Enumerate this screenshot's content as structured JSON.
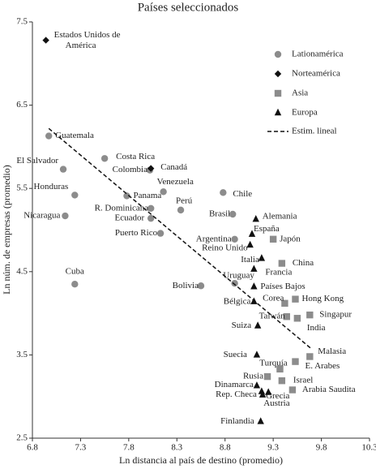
{
  "chart_data": {
    "type": "scatter",
    "title": "Países seleccionados",
    "x_label": "Ln distancia al país de destino (promedio)",
    "y_label": "Ln núm. de empresas (promedio)",
    "xlim": [
      6.8,
      10.3
    ],
    "xticks": [
      6.8,
      7.3,
      7.8,
      8.3,
      8.8,
      9.3,
      9.8,
      10.3
    ],
    "ylim": [
      2.5,
      7.5
    ],
    "yticks": [
      7.5,
      6.5,
      5.5,
      4.5,
      3.5,
      2.5
    ],
    "series": [
      {
        "name": "Lationamérica",
        "marker": "circle",
        "color": "#8c8c8c",
        "labels": [
          "Guatemala",
          "El Salvador",
          "Costa Rica",
          "Honduras",
          "Panama",
          "R. Dominicana",
          "Ecuador",
          "Nicaragua",
          "Colombia",
          "Venezuela",
          "Perú",
          "Puerto Rico",
          "Chile",
          "Brasil",
          "Argentina",
          "Uruguay",
          "Cuba",
          "Bolivia"
        ],
        "x": [
          6.97,
          7.12,
          7.55,
          7.24,
          7.78,
          8.03,
          8.03,
          7.14,
          8.02,
          8.16,
          8.34,
          8.13,
          8.78,
          8.88,
          8.9,
          8.9,
          7.24,
          8.55
        ],
        "values": [
          6.13,
          5.73,
          5.86,
          5.42,
          5.41,
          5.26,
          5.14,
          5.17,
          5.72,
          5.46,
          5.24,
          4.96,
          5.45,
          5.19,
          4.89,
          4.36,
          4.35,
          4.33
        ]
      },
      {
        "name": "Norteamérica",
        "marker": "diamond",
        "color": "#111111",
        "labels": [
          [
            "Estados Unidos de",
            "América"
          ],
          "Canadá"
        ],
        "x": [
          6.94,
          8.03
        ],
        "values": [
          7.28,
          5.74
        ]
      },
      {
        "name": "Asia",
        "marker": "square",
        "color": "#8c8c8c",
        "labels": [
          "Japón",
          "China",
          "Corea",
          "Hong Kong",
          "Taiwán",
          "Singapur",
          "India",
          "Malasia",
          "E. Arabes",
          "Turquía",
          "Rusia",
          "Israel",
          "Arabia Saudita"
        ],
        "x": [
          9.3,
          9.39,
          9.42,
          9.53,
          9.44,
          9.68,
          9.55,
          9.68,
          9.53,
          9.37,
          9.24,
          9.39,
          9.5
        ],
        "values": [
          4.89,
          4.6,
          4.12,
          4.17,
          3.96,
          3.98,
          3.94,
          3.48,
          3.42,
          3.33,
          3.24,
          3.19,
          3.08
        ]
      },
      {
        "name": "Europa",
        "marker": "triangle",
        "color": "#111111",
        "labels": [
          "Alemania",
          "España",
          "Reino Unido",
          "Italia",
          "Francia",
          "Países Bajos",
          "Bélgica",
          "Suiza",
          "Suecia",
          "Dinamarca",
          "Rep. Checa",
          "Grecia",
          "Austria",
          "Finlandia"
        ],
        "x": [
          9.12,
          9.08,
          9.06,
          9.18,
          9.1,
          9.1,
          9.1,
          9.14,
          9.13,
          9.13,
          9.18,
          9.19,
          9.25,
          9.17
        ],
        "values": [
          5.13,
          4.95,
          4.82,
          4.66,
          4.53,
          4.32,
          4.14,
          3.85,
          3.5,
          3.13,
          3.06,
          3.02,
          3.05,
          2.7
        ]
      }
    ],
    "trend": {
      "name": "Estim. lineal",
      "color": "#111111",
      "x": [
        6.97,
        9.7
      ],
      "values": [
        6.22,
        3.57
      ]
    }
  }
}
